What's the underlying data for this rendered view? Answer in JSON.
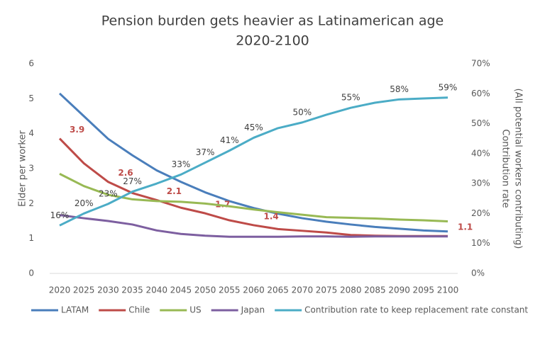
{
  "chart_data": {
    "type": "line",
    "title": "Pension burden gets heavier as Latinamerican age",
    "subtitle": "2020-2100",
    "ylabel": "Elder per worker",
    "y2label": [
      "Contribution rate",
      "(All potential workers contributing)"
    ],
    "categories": [
      "2020",
      "2025",
      "2030",
      "2035",
      "2040",
      "2045",
      "2050",
      "2055",
      "2060",
      "2065",
      "2070",
      "2075",
      "2080",
      "2085",
      "2090",
      "2095",
      "2100"
    ],
    "ylim": [
      0,
      6
    ],
    "yticks": [
      0,
      1,
      2,
      3,
      4,
      5,
      6
    ],
    "y2lim": [
      0,
      70
    ],
    "y2ticks": [
      {
        "value": 0,
        "label": "0%"
      },
      {
        "value": 10,
        "label": "10%"
      },
      {
        "value": 20,
        "label": "20%"
      },
      {
        "value": 30,
        "label": "30%"
      },
      {
        "value": 40,
        "label": "40%"
      },
      {
        "value": 50,
        "label": "50%"
      },
      {
        "value": 60,
        "label": "60%"
      },
      {
        "value": 70,
        "label": "70%"
      }
    ],
    "grid": false,
    "legend": "bottom",
    "series": [
      {
        "name": "LATAM",
        "color": "#4a7ebb",
        "values": [
          5.15,
          4.5,
          3.85,
          3.38,
          2.95,
          2.62,
          2.32,
          2.07,
          1.87,
          1.71,
          1.58,
          1.48,
          1.4,
          1.33,
          1.28,
          1.23,
          1.2
        ]
      },
      {
        "name": "Chile",
        "color": "#be4b48",
        "values": [
          3.86,
          3.15,
          2.62,
          2.3,
          2.1,
          1.88,
          1.72,
          1.52,
          1.38,
          1.27,
          1.22,
          1.17,
          1.1,
          1.08,
          1.07,
          1.07,
          1.07
        ],
        "value_labels": [
          "3.9",
          null,
          "2.6",
          null,
          "2.1",
          null,
          "1.7",
          null,
          "1.4",
          null,
          null,
          null,
          null,
          null,
          null,
          null,
          "1.1"
        ]
      },
      {
        "name": "US",
        "color": "#98b954",
        "values": [
          2.85,
          2.5,
          2.25,
          2.12,
          2.07,
          2.05,
          2.0,
          1.92,
          1.83,
          1.75,
          1.68,
          1.61,
          1.59,
          1.57,
          1.54,
          1.52,
          1.49
        ]
      },
      {
        "name": "Japan",
        "color": "#7d5fa0",
        "values": [
          1.67,
          1.58,
          1.5,
          1.4,
          1.23,
          1.13,
          1.08,
          1.05,
          1.05,
          1.05,
          1.06,
          1.06,
          1.05,
          1.06,
          1.06,
          1.06,
          1.06
        ]
      },
      {
        "name": "Contribution rate to keep replacement rate constant",
        "color": "#4bacc6",
        "axis": "y2",
        "values": [
          16,
          20,
          23.2,
          27.3,
          30,
          33,
          37,
          41,
          45.3,
          48.5,
          50.4,
          53,
          55.3,
          57,
          58.1,
          58.4,
          58.7
        ],
        "value_labels": [
          "16%",
          "20%",
          "23%",
          "27%",
          null,
          "33%",
          "37%",
          "41%",
          "45%",
          null,
          "50%",
          null,
          "55%",
          null,
          "58%",
          null,
          "59%"
        ]
      }
    ]
  }
}
